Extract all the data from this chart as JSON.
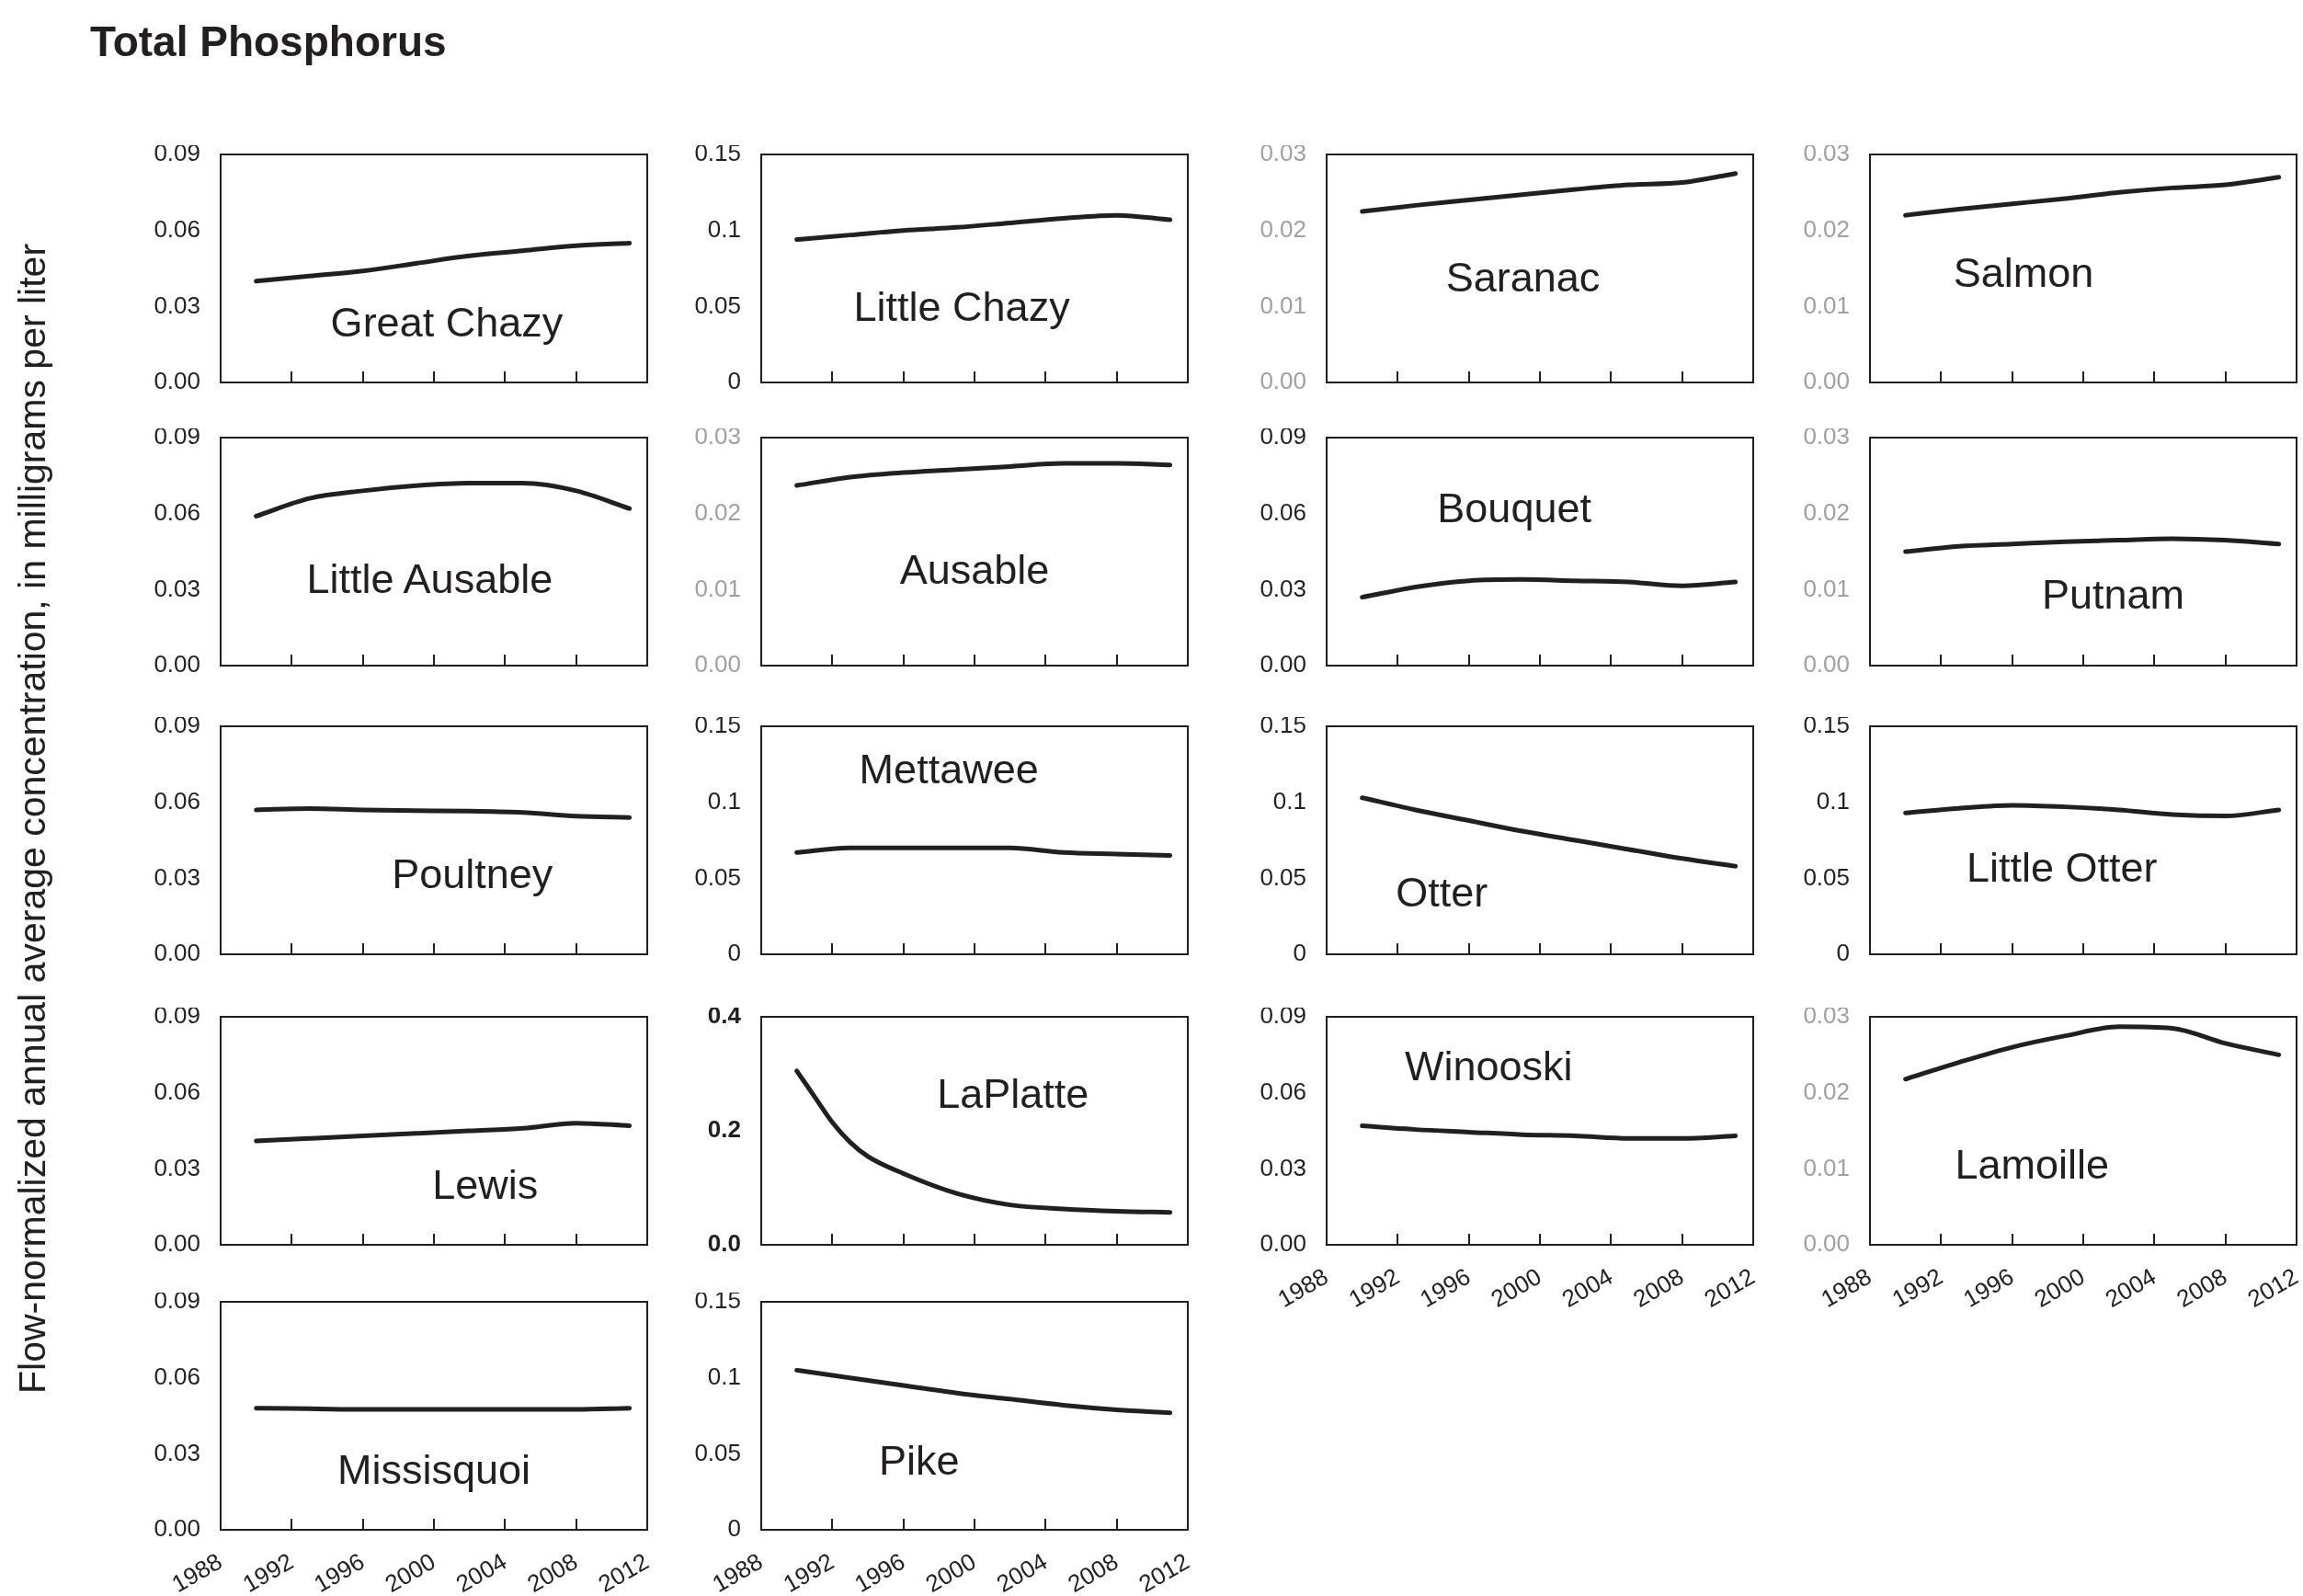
{
  "chart_data": [
    {
      "type": "line",
      "title": "Total Phosphorus",
      "ylabel": "Flow-normalized annual average concentration, in milligrams per liter",
      "tick_labels": "y",
      "x": [
        1990,
        1993,
        1996,
        1999,
        2002,
        2005,
        2008,
        2011
      ],
      "xlim": [
        1988,
        2012
      ],
      "xticks": [
        1988,
        1992,
        1996,
        2000,
        2004,
        2008,
        2012
      ],
      "ylim": [
        0,
        0.09
      ],
      "yticks": [
        {
          "value": 0,
          "label": "0.00"
        },
        {
          "value": 0.03,
          "label": "0.03"
        },
        {
          "value": 0.06,
          "label": "0.06"
        },
        {
          "value": 0.09,
          "label": "0.09"
        }
      ],
      "series": [
        {
          "name": "Great Chazy",
          "color": "#231f20",
          "values": [
            0.04,
            0.042,
            0.044,
            0.047,
            0.05,
            0.052,
            0.054,
            0.055
          ]
        }
      ]
    },
    {
      "type": "line",
      "tick_labels": "y",
      "x": [
        1990,
        1993,
        1996,
        1999,
        2002,
        2005,
        2008,
        2011
      ],
      "xlim": [
        1988,
        2012
      ],
      "xticks": [
        1988,
        1992,
        1996,
        2000,
        2004,
        2008,
        2012
      ],
      "ylim": [
        0,
        0.15
      ],
      "yticks": [
        0,
        0.05,
        0.1,
        0.15
      ],
      "series": [
        {
          "name": "Little Chazy",
          "color": "#231f20",
          "values": [
            0.094,
            0.097,
            0.1,
            0.102,
            0.105,
            0.108,
            0.11,
            0.107
          ]
        }
      ]
    },
    {
      "type": "line",
      "tick_labels": "y",
      "x": [
        1990,
        1993,
        1996,
        1999,
        2002,
        2005,
        2008,
        2011
      ],
      "xlim": [
        1988,
        2012
      ],
      "xticks": [
        1988,
        1992,
        1996,
        2000,
        2004,
        2008,
        2012
      ],
      "ylim": [
        0,
        0.03
      ],
      "yticks": [
        {
          "value": 0,
          "label": "0.00"
        },
        0.01,
        0.02,
        0.03
      ],
      "series": [
        {
          "name": "Saranac",
          "color": "#231f20",
          "values": [
            0.0225,
            0.0233,
            0.024,
            0.0247,
            0.0254,
            0.026,
            0.0263,
            0.0275
          ]
        }
      ]
    },
    {
      "type": "line",
      "tick_labels": "y",
      "x": [
        1990,
        1993,
        1996,
        1999,
        2002,
        2005,
        2008,
        2011
      ],
      "xlim": [
        1988,
        2012
      ],
      "xticks": [
        1988,
        1992,
        1996,
        2000,
        2004,
        2008,
        2012
      ],
      "ylim": [
        0,
        0.03
      ],
      "yticks": [
        {
          "value": 0,
          "label": "0.00"
        },
        0.01,
        0.02,
        0.03
      ],
      "series": [
        {
          "name": "Salmon",
          "color": "#231f20",
          "values": [
            0.022,
            0.0228,
            0.0235,
            0.0242,
            0.025,
            0.0256,
            0.026,
            0.027
          ]
        }
      ]
    },
    {
      "type": "line",
      "tick_labels": "y",
      "x": [
        1990,
        1993,
        1996,
        1999,
        2002,
        2005,
        2008,
        2011
      ],
      "xlim": [
        1988,
        2012
      ],
      "xticks": [
        1988,
        1992,
        1996,
        2000,
        2004,
        2008,
        2012
      ],
      "ylim": [
        0,
        0.09
      ],
      "yticks": [
        {
          "value": 0,
          "label": "0.00"
        },
        {
          "value": 0.03,
          "label": "0.03"
        },
        {
          "value": 0.06,
          "label": "0.06"
        },
        {
          "value": 0.09,
          "label": "0.09"
        }
      ],
      "series": [
        {
          "name": "Little Ausable",
          "color": "#231f20",
          "values": [
            0.059,
            0.066,
            0.069,
            0.071,
            0.072,
            0.072,
            0.069,
            0.062
          ]
        }
      ]
    },
    {
      "type": "line",
      "tick_labels": "y",
      "x": [
        1990,
        1993,
        1996,
        1999,
        2002,
        2005,
        2008,
        2011
      ],
      "xlim": [
        1988,
        2012
      ],
      "xticks": [
        1988,
        1992,
        1996,
        2000,
        2004,
        2008,
        2012
      ],
      "ylim": [
        0,
        0.03
      ],
      "yticks": [
        {
          "value": 0,
          "label": "0.00"
        },
        0.01,
        0.02,
        0.03
      ],
      "series": [
        {
          "name": "Ausable",
          "color": "#231f20",
          "values": [
            0.0237,
            0.0248,
            0.0254,
            0.0258,
            0.0262,
            0.0266,
            0.0266,
            0.0264
          ]
        }
      ]
    },
    {
      "type": "line",
      "tick_labels": "y",
      "x": [
        1990,
        1993,
        1996,
        1999,
        2002,
        2005,
        2008,
        2011
      ],
      "xlim": [
        1988,
        2012
      ],
      "xticks": [
        1988,
        1992,
        1996,
        2000,
        2004,
        2008,
        2012
      ],
      "ylim": [
        0,
        0.09
      ],
      "yticks": [
        {
          "value": 0,
          "label": "0.00"
        },
        {
          "value": 0.03,
          "label": "0.03"
        },
        {
          "value": 0.06,
          "label": "0.06"
        },
        {
          "value": 0.09,
          "label": "0.09"
        }
      ],
      "series": [
        {
          "name": "Bouquet",
          "color": "#231f20",
          "values": [
            0.027,
            0.031,
            0.0335,
            0.034,
            0.0335,
            0.033,
            0.0315,
            0.033
          ]
        }
      ]
    },
    {
      "type": "line",
      "tick_labels": "y",
      "x": [
        1990,
        1993,
        1996,
        1999,
        2002,
        2005,
        2008,
        2011
      ],
      "xlim": [
        1988,
        2012
      ],
      "xticks": [
        1988,
        1992,
        1996,
        2000,
        2004,
        2008,
        2012
      ],
      "ylim": [
        0,
        0.03
      ],
      "yticks": [
        {
          "value": 0,
          "label": "0.00"
        },
        0.01,
        0.02,
        0.03
      ],
      "series": [
        {
          "name": "Putnam",
          "color": "#231f20",
          "values": [
            0.015,
            0.0157,
            0.016,
            0.0163,
            0.0165,
            0.0167,
            0.0165,
            0.016
          ]
        }
      ]
    },
    {
      "type": "line",
      "tick_labels": "y",
      "x": [
        1990,
        1993,
        1996,
        1999,
        2002,
        2005,
        2008,
        2011
      ],
      "xlim": [
        1988,
        2012
      ],
      "xticks": [
        1988,
        1992,
        1996,
        2000,
        2004,
        2008,
        2012
      ],
      "ylim": [
        0,
        0.09
      ],
      "yticks": [
        {
          "value": 0,
          "label": "0.00"
        },
        {
          "value": 0.03,
          "label": "0.03"
        },
        {
          "value": 0.06,
          "label": "0.06"
        },
        {
          "value": 0.09,
          "label": "0.09"
        }
      ],
      "series": [
        {
          "name": "Poultney",
          "color": "#231f20",
          "values": [
            0.057,
            0.0575,
            0.057,
            0.0567,
            0.0565,
            0.056,
            0.0545,
            0.054
          ]
        }
      ]
    },
    {
      "type": "line",
      "tick_labels": "y",
      "x": [
        1990,
        1993,
        1996,
        1999,
        2002,
        2005,
        2008,
        2011
      ],
      "xlim": [
        1988,
        2012
      ],
      "xticks": [
        1988,
        1992,
        1996,
        2000,
        2004,
        2008,
        2012
      ],
      "ylim": [
        0,
        0.15
      ],
      "yticks": [
        0,
        0.05,
        0.1,
        0.15
      ],
      "series": [
        {
          "name": "Mettawee",
          "color": "#231f20",
          "values": [
            0.067,
            0.07,
            0.07,
            0.07,
            0.07,
            0.067,
            0.066,
            0.065
          ]
        }
      ]
    },
    {
      "type": "line",
      "tick_labels": "y",
      "x": [
        1990,
        1993,
        1996,
        1999,
        2002,
        2005,
        2008,
        2011
      ],
      "xlim": [
        1988,
        2012
      ],
      "xticks": [
        1988,
        1992,
        1996,
        2000,
        2004,
        2008,
        2012
      ],
      "ylim": [
        0,
        0.15
      ],
      "yticks": [
        0,
        0.05,
        0.1,
        0.15
      ],
      "series": [
        {
          "name": "Otter",
          "color": "#231f20",
          "values": [
            0.103,
            0.095,
            0.088,
            0.081,
            0.075,
            0.069,
            0.063,
            0.058
          ]
        }
      ]
    },
    {
      "type": "line",
      "tick_labels": "y",
      "x": [
        1990,
        1993,
        1996,
        1999,
        2002,
        2005,
        2008,
        2011
      ],
      "xlim": [
        1988,
        2012
      ],
      "xticks": [
        1988,
        1992,
        1996,
        2000,
        2004,
        2008,
        2012
      ],
      "ylim": [
        0,
        0.15
      ],
      "yticks": [
        0,
        0.05,
        0.1,
        0.15
      ],
      "series": [
        {
          "name": "Little Otter",
          "color": "#231f20",
          "values": [
            0.093,
            0.096,
            0.098,
            0.097,
            0.095,
            0.092,
            0.091,
            0.095
          ]
        }
      ]
    },
    {
      "type": "line",
      "tick_labels": "y",
      "x": [
        1990,
        1993,
        1996,
        1999,
        2002,
        2005,
        2008,
        2011
      ],
      "xlim": [
        1988,
        2012
      ],
      "xticks": [
        1988,
        1992,
        1996,
        2000,
        2004,
        2008,
        2012
      ],
      "ylim": [
        0,
        0.09
      ],
      "yticks": [
        {
          "value": 0,
          "label": "0.00"
        },
        {
          "value": 0.03,
          "label": "0.03"
        },
        {
          "value": 0.06,
          "label": "0.06"
        },
        {
          "value": 0.09,
          "label": "0.09"
        }
      ],
      "series": [
        {
          "name": "Lewis",
          "color": "#231f20",
          "values": [
            0.041,
            0.042,
            0.043,
            0.044,
            0.045,
            0.046,
            0.048,
            0.047
          ]
        }
      ]
    },
    {
      "type": "line",
      "tick_labels": "y",
      "x": [
        1990,
        1991,
        1992,
        1993,
        1994,
        1996,
        1999,
        2002,
        2005,
        2008,
        2011
      ],
      "xlim": [
        1988,
        2012
      ],
      "xticks": [
        1988,
        1992,
        1996,
        2000,
        2004,
        2008,
        2012
      ],
      "ylim": [
        0,
        0.4
      ],
      "yticks": [
        {
          "value": 0,
          "label": "0.0"
        },
        {
          "value": 0.2,
          "label": "0.2"
        },
        {
          "value": 0.4,
          "label": "0.4"
        }
      ],
      "series": [
        {
          "name": "LaPlatte",
          "color": "#231f20",
          "values": [
            0.305,
            0.26,
            0.215,
            0.18,
            0.155,
            0.125,
            0.09,
            0.07,
            0.063,
            0.059,
            0.057
          ]
        }
      ]
    },
    {
      "type": "line",
      "x": [
        1990,
        1993,
        1996,
        1999,
        2002,
        2005,
        2008,
        2011
      ],
      "xlim": [
        1988,
        2012
      ],
      "xticks": [
        1988,
        1992,
        1996,
        2000,
        2004,
        2008,
        2012
      ],
      "ylim": [
        0,
        0.09
      ],
      "yticks": [
        {
          "value": 0,
          "label": "0.00"
        },
        {
          "value": 0.03,
          "label": "0.03"
        },
        {
          "value": 0.06,
          "label": "0.06"
        },
        {
          "value": 0.09,
          "label": "0.09"
        }
      ],
      "series": [
        {
          "name": "Winooski",
          "color": "#231f20",
          "values": [
            0.047,
            0.0455,
            0.0445,
            0.0435,
            0.043,
            0.042,
            0.042,
            0.043
          ]
        }
      ]
    },
    {
      "type": "line",
      "x": [
        1990,
        1993,
        1996,
        1999,
        2002,
        2005,
        2008,
        2011
      ],
      "xlim": [
        1988,
        2012
      ],
      "xticks": [
        1988,
        1992,
        1996,
        2000,
        2004,
        2008,
        2012
      ],
      "ylim": [
        0,
        0.03
      ],
      "yticks": [
        {
          "value": 0,
          "label": "0.00"
        },
        0.01,
        0.02,
        0.03
      ],
      "series": [
        {
          "name": "Lamoille",
          "color": "#231f20",
          "values": [
            0.0218,
            0.024,
            0.026,
            0.0275,
            0.0287,
            0.0285,
            0.0265,
            0.025
          ]
        }
      ]
    },
    {
      "type": "line",
      "x": [
        1990,
        1993,
        1996,
        1999,
        2002,
        2005,
        2008,
        2011
      ],
      "xlim": [
        1988,
        2012
      ],
      "xticks": [
        1988,
        1992,
        1996,
        2000,
        2004,
        2008,
        2012
      ],
      "ylim": [
        0,
        0.09
      ],
      "yticks": [
        {
          "value": 0,
          "label": "0.00"
        },
        {
          "value": 0.03,
          "label": "0.03"
        },
        {
          "value": 0.06,
          "label": "0.06"
        },
        {
          "value": 0.09,
          "label": "0.09"
        }
      ],
      "series": [
        {
          "name": "Missisquoi",
          "color": "#231f20",
          "values": [
            0.048,
            0.0478,
            0.0475,
            0.0475,
            0.0475,
            0.0475,
            0.0475,
            0.048
          ]
        }
      ]
    },
    {
      "type": "line",
      "x": [
        1990,
        1993,
        1996,
        1999,
        2002,
        2005,
        2008,
        2011
      ],
      "xlim": [
        1988,
        2012
      ],
      "xticks": [
        1988,
        1992,
        1996,
        2000,
        2004,
        2008,
        2012
      ],
      "ylim": [
        0,
        0.15
      ],
      "yticks": [
        0,
        0.05,
        0.1,
        0.15
      ],
      "series": [
        {
          "name": "Pike",
          "color": "#231f20",
          "values": [
            0.105,
            0.1,
            0.095,
            0.09,
            0.086,
            0.082,
            0.079,
            0.077
          ]
        }
      ]
    }
  ]
}
